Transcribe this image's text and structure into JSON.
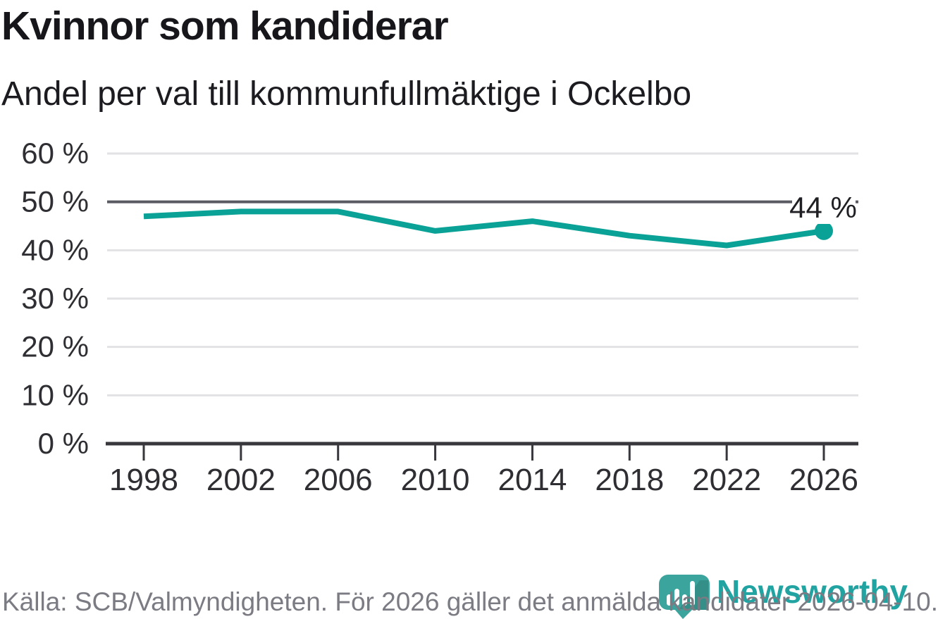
{
  "header": {
    "title": "Kvinnor som kandiderar",
    "subtitle": "Andel per val till kommunfullmäktige i Ockelbo"
  },
  "chart_data": {
    "type": "line",
    "title": "Kvinnor som kandiderar",
    "subtitle": "Andel per val till kommunfullmäktige i Ockelbo",
    "categories": [
      "1998",
      "2002",
      "2006",
      "2010",
      "2014",
      "2018",
      "2022",
      "2026"
    ],
    "values": [
      47,
      48,
      48,
      44,
      46,
      43,
      41,
      44
    ],
    "unit": "%",
    "xlabel": "",
    "ylabel": "",
    "ylim": [
      0,
      60
    ],
    "ytick_labels": [
      "0 %",
      "10 %",
      "20 %",
      "30 %",
      "40 %",
      "50 %",
      "60 %"
    ],
    "reference_line_value": 50,
    "end_point_label": "44 %",
    "grid": true,
    "legend_position": "none"
  },
  "footer": {
    "source": "Källa: SCB/Valmyndigheten. För 2026 gäller det anmälda kandidater 2026-04-10."
  },
  "brand": {
    "wordmark": "Newsworthy",
    "logo_icon": "speech-bubble-bar-chart-icon"
  },
  "colors": {
    "accent": "#0aa296",
    "title_text": "#17171b",
    "axis_text": "#2e2e33",
    "muted_text": "#7b7b83",
    "gridline": "#e2e2e4",
    "reference_line": "#5a5a62",
    "axis_line": "#37373c",
    "brand_teal": "#3ba49d",
    "brand_word_teal": "#21a4a1",
    "label_text": "#202024"
  }
}
